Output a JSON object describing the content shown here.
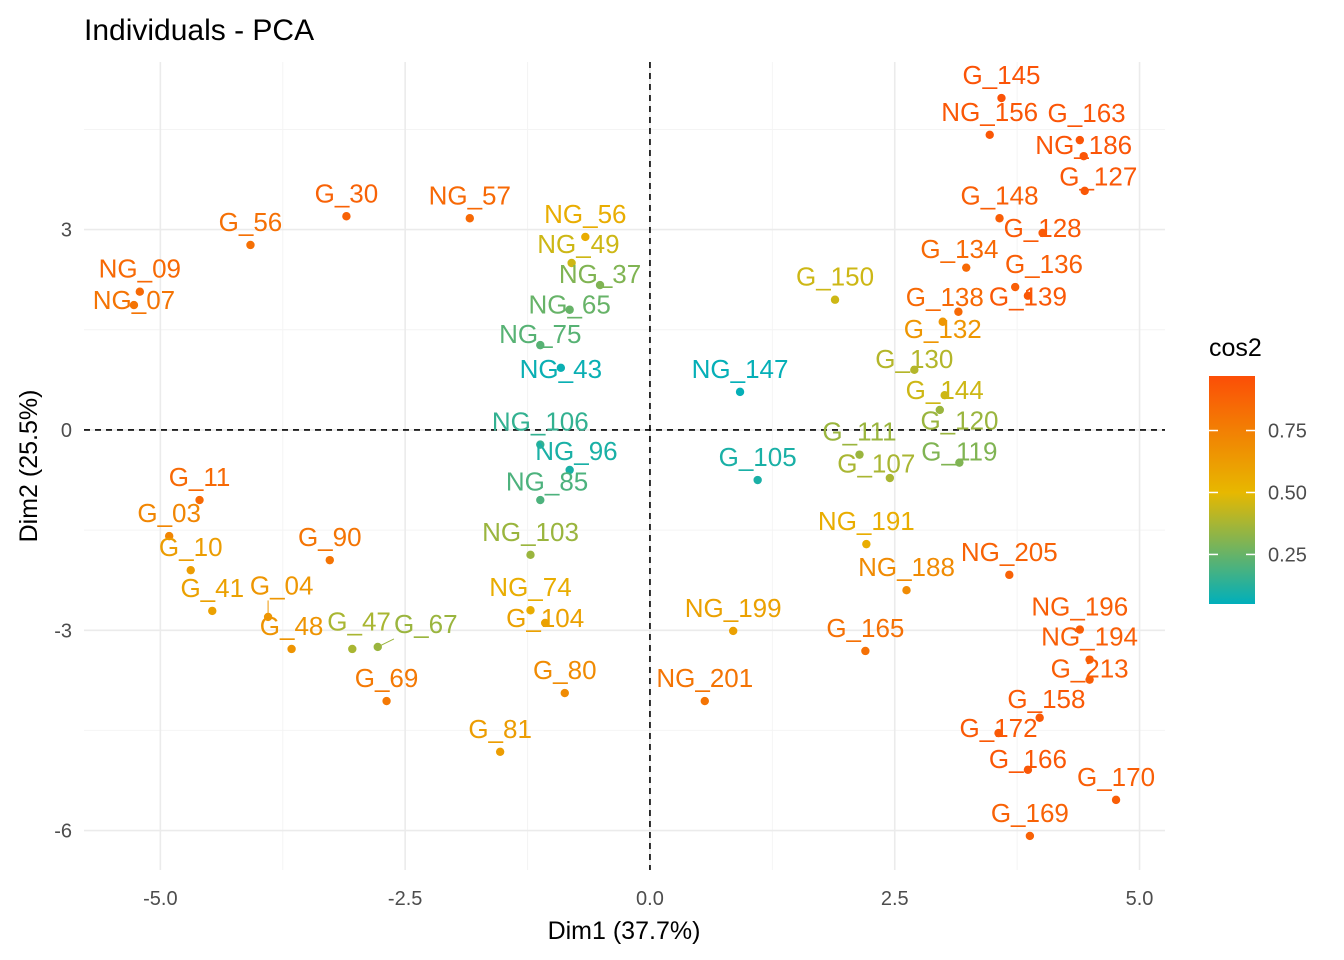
{
  "chart_data": {
    "type": "scatter",
    "title": "Individuals - PCA",
    "xlabel": "Dim1 (37.7%)",
    "ylabel": "Dim2 (25.5%)",
    "xlim": [
      -5.78,
      5.26
    ],
    "ylim": [
      -6.59,
      5.51
    ],
    "x_ticks": [
      -5.0,
      -2.5,
      0.0,
      2.5,
      5.0
    ],
    "x_tick_labels": [
      "-5.0",
      "-2.5",
      "0.0",
      "2.5",
      "5.0"
    ],
    "y_ticks": [
      -6,
      -3,
      0,
      3
    ],
    "y_tick_labels": [
      "-6",
      "-3",
      "0",
      "3"
    ],
    "grid": true,
    "reference_lines": {
      "x": 0,
      "y": 0,
      "style": "dashed"
    },
    "legend": {
      "title": "cos2",
      "placement": "right",
      "ticks": [
        0.25,
        0.5,
        0.75
      ],
      "tick_labels": [
        "0.25",
        "0.50",
        "0.75"
      ],
      "range": [
        0.05,
        0.97
      ],
      "colors": {
        "low": "#00AFBB",
        "mid": "#E7B800",
        "high": "#FC4E07"
      },
      "midpoint": 0.5
    },
    "points": [
      {
        "label": "G_145",
        "x": 3.59,
        "y": 4.97,
        "cos2": 0.95
      },
      {
        "label": "NG_156",
        "x": 3.47,
        "y": 4.42,
        "cos2": 0.93
      },
      {
        "label": "G_163",
        "x": 4.39,
        "y": 4.34,
        "cos2": 0.94
      },
      {
        "label": "NG_186",
        "x": 4.43,
        "y": 4.1,
        "cos2": 0.94
      },
      {
        "label": "G_127",
        "x": 4.44,
        "y": 3.58,
        "cos2": 0.93
      },
      {
        "label": "G_148",
        "x": 3.57,
        "y": 3.17,
        "cos2": 0.9
      },
      {
        "label": "G_128",
        "x": 4.01,
        "y": 2.95,
        "cos2": 0.92
      },
      {
        "label": "G_134",
        "x": 3.23,
        "y": 2.43,
        "cos2": 0.85
      },
      {
        "label": "G_136",
        "x": 3.73,
        "y": 2.14,
        "cos2": 0.9
      },
      {
        "label": "G_139",
        "x": 3.86,
        "y": 2.01,
        "cos2": 0.93
      },
      {
        "label": "G_138",
        "x": 3.15,
        "y": 1.77,
        "cos2": 0.85
      },
      {
        "label": "G_150",
        "x": 1.89,
        "y": 1.95,
        "cos2": 0.45
      },
      {
        "label": "G_132",
        "x": 2.99,
        "y": 1.62,
        "cos2": 0.65
      },
      {
        "label": "G_130",
        "x": 2.7,
        "y": 0.9,
        "cos2": 0.4
      },
      {
        "label": "G_144",
        "x": 3.01,
        "y": 0.52,
        "cos2": 0.45
      },
      {
        "label": "G_120",
        "x": 2.96,
        "y": 0.3,
        "cos2": 0.35
      },
      {
        "label": "NG_147",
        "x": 0.92,
        "y": 0.57,
        "cos2": 0.06
      },
      {
        "label": "G_119",
        "x": 3.16,
        "y": -0.49,
        "cos2": 0.3
      },
      {
        "label": "G_111",
        "x": 2.14,
        "y": -0.37,
        "cos2": 0.35
      },
      {
        "label": "G_107",
        "x": 2.45,
        "y": -0.72,
        "cos2": 0.38
      },
      {
        "label": "G_105",
        "x": 1.1,
        "y": -0.75,
        "cos2": 0.1
      },
      {
        "label": "NG_191",
        "x": 2.21,
        "y": -1.71,
        "cos2": 0.55
      },
      {
        "label": "NG_188",
        "x": 2.62,
        "y": -2.4,
        "cos2": 0.7
      },
      {
        "label": "NG_205",
        "x": 3.67,
        "y": -2.17,
        "cos2": 0.88
      },
      {
        "label": "NG_196",
        "x": 4.39,
        "y": -2.99,
        "cos2": 0.9
      },
      {
        "label": "G_165",
        "x": 2.2,
        "y": -3.31,
        "cos2": 0.82
      },
      {
        "label": "NG_194",
        "x": 4.49,
        "y": -3.44,
        "cos2": 0.9
      },
      {
        "label": "G_213",
        "x": 4.49,
        "y": -3.74,
        "cos2": 0.9
      },
      {
        "label": "G_158",
        "x": 3.98,
        "y": -4.31,
        "cos2": 0.92
      },
      {
        "label": "G_172",
        "x": 3.56,
        "y": -4.54,
        "cos2": 0.92
      },
      {
        "label": "G_166",
        "x": 3.86,
        "y": -5.09,
        "cos2": 0.93
      },
      {
        "label": "G_170",
        "x": 4.76,
        "y": -5.54,
        "cos2": 0.9
      },
      {
        "label": "G_169",
        "x": 3.88,
        "y": -6.08,
        "cos2": 0.88
      },
      {
        "label": "NG_199",
        "x": 0.85,
        "y": -3.01,
        "cos2": 0.6
      },
      {
        "label": "NG_201",
        "x": 0.56,
        "y": -4.06,
        "cos2": 0.8
      },
      {
        "label": "G_30",
        "x": -3.1,
        "y": 3.2,
        "cos2": 0.88
      },
      {
        "label": "NG_57",
        "x": -1.84,
        "y": 3.17,
        "cos2": 0.85
      },
      {
        "label": "NG_56",
        "x": -0.66,
        "y": 2.89,
        "cos2": 0.55
      },
      {
        "label": "G_56",
        "x": -4.08,
        "y": 2.77,
        "cos2": 0.82
      },
      {
        "label": "NG_49",
        "x": -0.8,
        "y": 2.5,
        "cos2": 0.45
      },
      {
        "label": "NG_37",
        "x": -0.51,
        "y": 2.17,
        "cos2": 0.3
      },
      {
        "label": "NG_65",
        "x": -0.82,
        "y": 1.8,
        "cos2": 0.25
      },
      {
        "label": "NG_09",
        "x": -5.21,
        "y": 2.07,
        "cos2": 0.85
      },
      {
        "label": "NG_07",
        "x": -5.27,
        "y": 1.87,
        "cos2": 0.8
      },
      {
        "label": "NG_75",
        "x": -1.12,
        "y": 1.27,
        "cos2": 0.22
      },
      {
        "label": "NG_43",
        "x": -0.91,
        "y": 0.93,
        "cos2": 0.07
      },
      {
        "label": "NG_106",
        "x": -1.12,
        "y": -0.22,
        "cos2": 0.15
      },
      {
        "label": "NG_96",
        "x": -0.82,
        "y": -0.6,
        "cos2": 0.1
      },
      {
        "label": "NG_85",
        "x": -1.12,
        "y": -1.05,
        "cos2": 0.2
      },
      {
        "label": "NG_103",
        "x": -1.22,
        "y": -1.87,
        "cos2": 0.35
      },
      {
        "label": "NG_74",
        "x": -1.22,
        "y": -2.7,
        "cos2": 0.55
      },
      {
        "label": "G_11",
        "x": -4.6,
        "y": -1.05,
        "cos2": 0.85
      },
      {
        "label": "G_03",
        "x": -4.91,
        "y": -1.59,
        "cos2": 0.72
      },
      {
        "label": "G_10",
        "x": -4.69,
        "y": -2.1,
        "cos2": 0.62
      },
      {
        "label": "G_90",
        "x": -3.27,
        "y": -1.95,
        "cos2": 0.8
      },
      {
        "label": "G_41",
        "x": -4.47,
        "y": -2.71,
        "cos2": 0.6
      },
      {
        "label": "G_04",
        "x": -3.9,
        "y": -2.8,
        "cos2": 0.65
      },
      {
        "label": "G_48",
        "x": -3.66,
        "y": -3.28,
        "cos2": 0.66
      },
      {
        "label": "G_47",
        "x": -3.04,
        "y": -3.28,
        "cos2": 0.38
      },
      {
        "label": "G_67",
        "x": -2.78,
        "y": -3.25,
        "cos2": 0.35
      },
      {
        "label": "G_104",
        "x": -1.07,
        "y": -2.89,
        "cos2": 0.6
      },
      {
        "label": "G_69",
        "x": -2.69,
        "y": -4.06,
        "cos2": 0.78
      },
      {
        "label": "G_80",
        "x": -0.87,
        "y": -3.94,
        "cos2": 0.7
      },
      {
        "label": "G_81",
        "x": -1.53,
        "y": -4.82,
        "cos2": 0.62
      }
    ]
  }
}
